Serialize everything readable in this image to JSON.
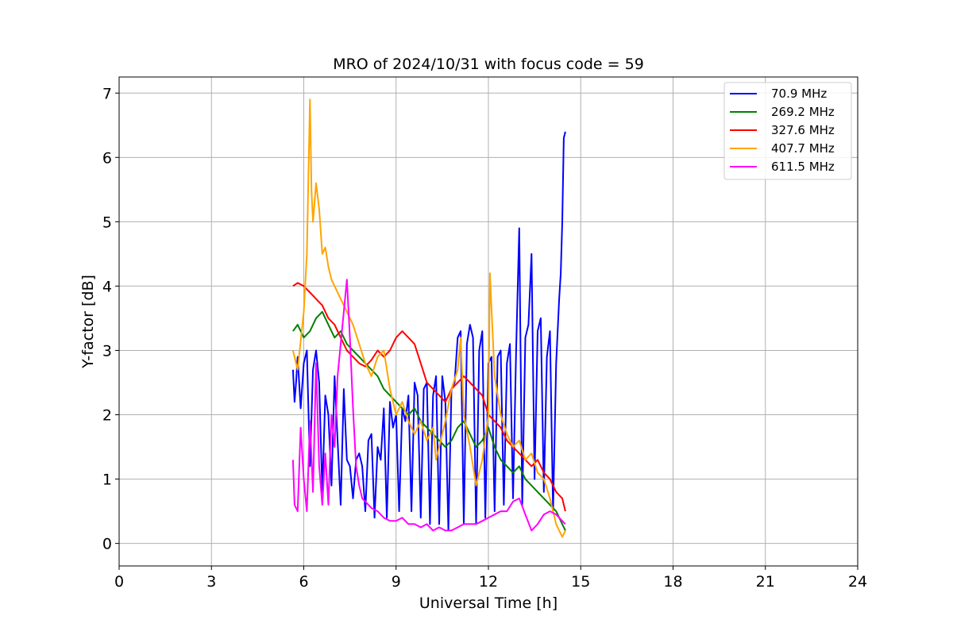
{
  "chart_data": {
    "type": "line",
    "title": "MRO of 2024/10/31 with focus code = 59",
    "xlabel": "Universal Time [h]",
    "ylabel": "Y-factor [dB]",
    "xlim": [
      0,
      24
    ],
    "ylim": [
      -0.35,
      7.25
    ],
    "xticks": [
      "0",
      "3",
      "6",
      "9",
      "12",
      "15",
      "18",
      "21",
      "24"
    ],
    "yticks": [
      "0",
      "1",
      "2",
      "3",
      "4",
      "5",
      "6",
      "7"
    ],
    "grid": true,
    "legend_position": "top-right",
    "series": [
      {
        "name": " 70.9 MHz",
        "color": "#0000ff",
        "x": [
          5.65,
          5.7,
          5.75,
          5.8,
          5.9,
          6.0,
          6.1,
          6.2,
          6.3,
          6.4,
          6.5,
          6.6,
          6.7,
          6.8,
          6.9,
          7.0,
          7.1,
          7.2,
          7.3,
          7.4,
          7.5,
          7.6,
          7.7,
          7.8,
          7.9,
          8.0,
          8.1,
          8.2,
          8.3,
          8.4,
          8.5,
          8.6,
          8.7,
          8.8,
          8.9,
          9.0,
          9.1,
          9.2,
          9.3,
          9.4,
          9.5,
          9.6,
          9.7,
          9.8,
          9.9,
          10.0,
          10.1,
          10.2,
          10.3,
          10.4,
          10.5,
          10.6,
          10.7,
          10.8,
          10.9,
          11.0,
          11.1,
          11.2,
          11.3,
          11.4,
          11.5,
          11.6,
          11.7,
          11.8,
          11.9,
          12.0,
          12.1,
          12.2,
          12.3,
          12.4,
          12.5,
          12.6,
          12.7,
          12.8,
          12.9,
          13.0,
          13.1,
          13.2,
          13.3,
          13.4,
          13.5,
          13.6,
          13.7,
          13.8,
          13.9,
          14.0,
          14.1,
          14.2,
          14.3,
          14.35,
          14.4,
          14.45,
          14.5
        ],
        "values": [
          2.7,
          2.2,
          2.5,
          2.9,
          2.1,
          2.8,
          3.0,
          1.2,
          2.7,
          3.0,
          2.5,
          0.8,
          2.3,
          2.0,
          0.9,
          2.6,
          1.6,
          0.6,
          2.4,
          1.3,
          1.2,
          0.7,
          1.3,
          1.4,
          1.2,
          0.5,
          1.6,
          1.7,
          0.4,
          1.5,
          1.3,
          2.1,
          0.4,
          2.2,
          1.8,
          2.0,
          0.5,
          2.1,
          1.9,
          2.3,
          0.5,
          2.5,
          2.3,
          0.4,
          2.4,
          2.5,
          0.3,
          2.3,
          2.6,
          0.3,
          2.6,
          2.2,
          0.2,
          2.4,
          2.5,
          3.2,
          3.3,
          0.3,
          3.1,
          3.4,
          3.2,
          0.3,
          3.0,
          3.3,
          0.4,
          2.8,
          2.9,
          0.5,
          2.9,
          3.0,
          0.6,
          2.8,
          3.1,
          0.7,
          3.0,
          4.9,
          0.6,
          3.2,
          3.4,
          4.5,
          1.0,
          3.3,
          3.5,
          0.8,
          2.9,
          3.3,
          0.5,
          2.8,
          3.8,
          4.2,
          5.0,
          6.3,
          6.4
        ]
      },
      {
        "name": "269.2 MHz",
        "color": "#008000",
        "x": [
          5.65,
          5.8,
          6.0,
          6.2,
          6.4,
          6.6,
          6.8,
          7.0,
          7.2,
          7.4,
          7.6,
          7.8,
          8.0,
          8.2,
          8.4,
          8.6,
          8.8,
          9.0,
          9.2,
          9.4,
          9.6,
          9.8,
          10.0,
          10.2,
          10.4,
          10.6,
          10.8,
          11.0,
          11.2,
          11.4,
          11.6,
          11.8,
          12.0,
          12.2,
          12.4,
          12.6,
          12.8,
          13.0,
          13.2,
          13.4,
          13.6,
          13.8,
          14.0,
          14.2,
          14.4,
          14.5
        ],
        "values": [
          3.3,
          3.4,
          3.2,
          3.3,
          3.5,
          3.6,
          3.4,
          3.2,
          3.3,
          3.1,
          3.0,
          2.9,
          2.8,
          2.7,
          2.6,
          2.4,
          2.3,
          2.2,
          2.1,
          2.0,
          2.1,
          1.9,
          1.8,
          1.7,
          1.6,
          1.5,
          1.6,
          1.8,
          1.9,
          1.7,
          1.5,
          1.6,
          1.8,
          1.5,
          1.3,
          1.2,
          1.1,
          1.2,
          1.0,
          0.9,
          0.8,
          0.7,
          0.6,
          0.5,
          0.3,
          0.2
        ]
      },
      {
        "name": "327.6 MHz",
        "color": "#ff0000",
        "x": [
          5.65,
          5.8,
          6.0,
          6.2,
          6.4,
          6.6,
          6.8,
          7.0,
          7.2,
          7.4,
          7.6,
          7.8,
          8.0,
          8.2,
          8.4,
          8.6,
          8.8,
          9.0,
          9.2,
          9.4,
          9.6,
          9.8,
          10.0,
          10.2,
          10.4,
          10.6,
          10.8,
          11.0,
          11.2,
          11.4,
          11.6,
          11.8,
          12.0,
          12.2,
          12.4,
          12.6,
          12.8,
          13.0,
          13.2,
          13.4,
          13.6,
          13.8,
          14.0,
          14.2,
          14.4,
          14.5
        ],
        "values": [
          4.0,
          4.05,
          4.0,
          3.9,
          3.8,
          3.7,
          3.5,
          3.4,
          3.2,
          3.0,
          2.9,
          2.8,
          2.75,
          2.85,
          3.0,
          2.9,
          3.0,
          3.2,
          3.3,
          3.2,
          3.1,
          2.8,
          2.5,
          2.4,
          2.3,
          2.2,
          2.4,
          2.5,
          2.6,
          2.5,
          2.4,
          2.3,
          2.0,
          1.9,
          1.8,
          1.6,
          1.5,
          1.4,
          1.3,
          1.2,
          1.3,
          1.1,
          1.0,
          0.8,
          0.7,
          0.5
        ]
      },
      {
        "name": "407.7 MHz",
        "color": "#ffa500",
        "x": [
          5.65,
          5.8,
          6.0,
          6.1,
          6.2,
          6.25,
          6.3,
          6.4,
          6.5,
          6.6,
          6.7,
          6.8,
          6.9,
          7.0,
          7.2,
          7.4,
          7.6,
          7.8,
          8.0,
          8.2,
          8.4,
          8.6,
          8.8,
          9.0,
          9.2,
          9.4,
          9.6,
          9.8,
          10.0,
          10.2,
          10.3,
          10.4,
          10.6,
          10.8,
          11.0,
          11.1,
          11.2,
          11.4,
          11.6,
          11.8,
          12.0,
          12.05,
          12.2,
          12.4,
          12.6,
          12.8,
          13.0,
          13.2,
          13.4,
          13.6,
          13.8,
          14.0,
          14.2,
          14.4,
          14.5
        ],
        "values": [
          3.0,
          2.7,
          3.6,
          4.5,
          6.9,
          5.5,
          5.0,
          5.6,
          5.2,
          4.5,
          4.6,
          4.3,
          4.1,
          4.0,
          3.8,
          3.6,
          3.4,
          3.1,
          2.8,
          2.6,
          2.9,
          3.0,
          2.4,
          2.0,
          2.2,
          1.9,
          1.7,
          1.9,
          1.6,
          1.8,
          1.3,
          1.5,
          1.9,
          2.4,
          2.7,
          3.2,
          2.0,
          1.5,
          0.9,
          1.3,
          2.0,
          4.2,
          2.6,
          2.0,
          1.7,
          1.5,
          1.6,
          1.3,
          1.4,
          1.1,
          1.0,
          0.7,
          0.3,
          0.1,
          0.2
        ]
      },
      {
        "name": "611.5 MHz",
        "color": "#ff00ff",
        "x": [
          5.65,
          5.7,
          5.8,
          5.9,
          6.0,
          6.1,
          6.2,
          6.3,
          6.4,
          6.5,
          6.6,
          6.7,
          6.8,
          6.9,
          7.0,
          7.1,
          7.2,
          7.3,
          7.4,
          7.5,
          7.6,
          7.7,
          7.8,
          7.9,
          8.0,
          8.2,
          8.4,
          8.6,
          8.8,
          9.0,
          9.2,
          9.4,
          9.6,
          9.8,
          10.0,
          10.2,
          10.4,
          10.6,
          10.8,
          11.0,
          11.2,
          11.4,
          11.6,
          11.8,
          12.0,
          12.2,
          12.4,
          12.6,
          12.8,
          13.0,
          13.2,
          13.4,
          13.6,
          13.8,
          14.0,
          14.2,
          14.4,
          14.5
        ],
        "values": [
          1.3,
          0.6,
          0.5,
          1.8,
          1.0,
          0.5,
          1.9,
          0.8,
          2.8,
          1.2,
          0.6,
          1.4,
          0.6,
          2.0,
          1.5,
          2.6,
          3.1,
          3.6,
          4.1,
          3.2,
          2.1,
          1.2,
          0.9,
          0.7,
          0.65,
          0.55,
          0.5,
          0.4,
          0.35,
          0.35,
          0.4,
          0.3,
          0.3,
          0.25,
          0.3,
          0.2,
          0.25,
          0.2,
          0.2,
          0.25,
          0.3,
          0.3,
          0.3,
          0.35,
          0.4,
          0.45,
          0.5,
          0.5,
          0.65,
          0.7,
          0.45,
          0.2,
          0.3,
          0.45,
          0.5,
          0.45,
          0.35,
          0.3
        ]
      }
    ]
  }
}
